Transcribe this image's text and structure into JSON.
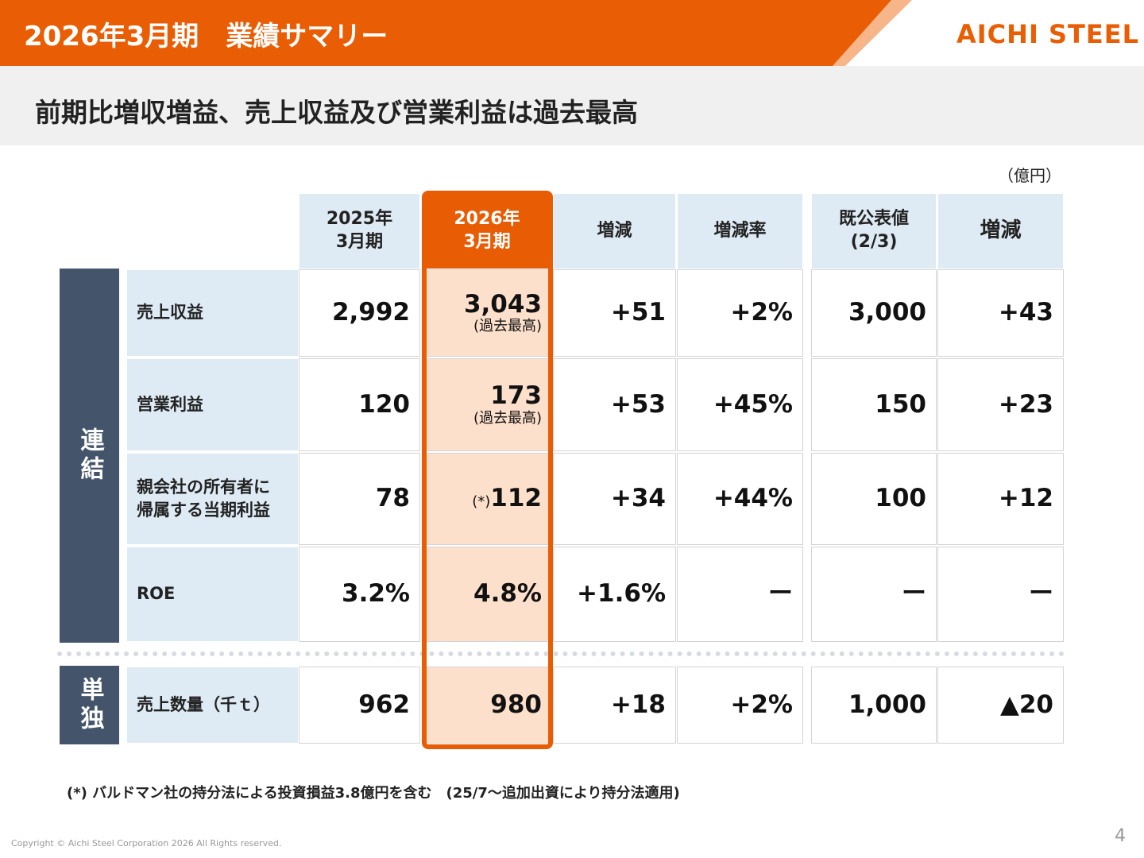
{
  "header": {
    "title": "2026年3月期　業績サマリー",
    "logo": "AICHI STEEL"
  },
  "subtitle": "前期比増収増益、売上収益及び営業利益は過去最高",
  "unit": "（億円）",
  "table": {
    "columns": [
      [
        "2025年",
        "3月期"
      ],
      [
        "2026年",
        "3月期"
      ],
      [
        "増減"
      ],
      [
        "増減率"
      ],
      [
        "既公表値",
        "(2/3)"
      ],
      [
        "増減"
      ]
    ],
    "groups": [
      {
        "label": "連結",
        "rows": [
          {
            "label": [
              "売上収益"
            ],
            "cells": [
              "2,992",
              {
                "value": "3,043",
                "note": "(過去最高)"
              },
              "+51",
              "+2%",
              "3,000",
              "+43"
            ]
          },
          {
            "label": [
              "営業利益"
            ],
            "cells": [
              "120",
              {
                "value": "173",
                "note": "(過去最高)"
              },
              "+53",
              "+45%",
              "150",
              "+23"
            ]
          },
          {
            "label": [
              "親会社の所有者に",
              "帰属する当期利益"
            ],
            "cells": [
              "78",
              {
                "prefix": "(*)",
                "value": "112"
              },
              "+34",
              "+44%",
              "100",
              "+12"
            ]
          },
          {
            "label": [
              "ROE"
            ],
            "cells": [
              "3.2%",
              "4.8%",
              "+1.6%",
              "ー",
              "ー",
              "ー"
            ]
          }
        ]
      },
      {
        "label": "単独",
        "rows": [
          {
            "label": [
              "売上数量（千ｔ）"
            ],
            "cells": [
              "962",
              "980",
              "+18",
              "+2%",
              "1,000",
              "▲20"
            ]
          }
        ]
      }
    ]
  },
  "footnote": "(*) バルドマン社の持分法による投資損益3.8億円を含む　(25/7～追加出資により持分法適用)",
  "copyright": "Copyright © Aichi Steel Corporation 2026 All Rights reserved.",
  "page_number": "4"
}
